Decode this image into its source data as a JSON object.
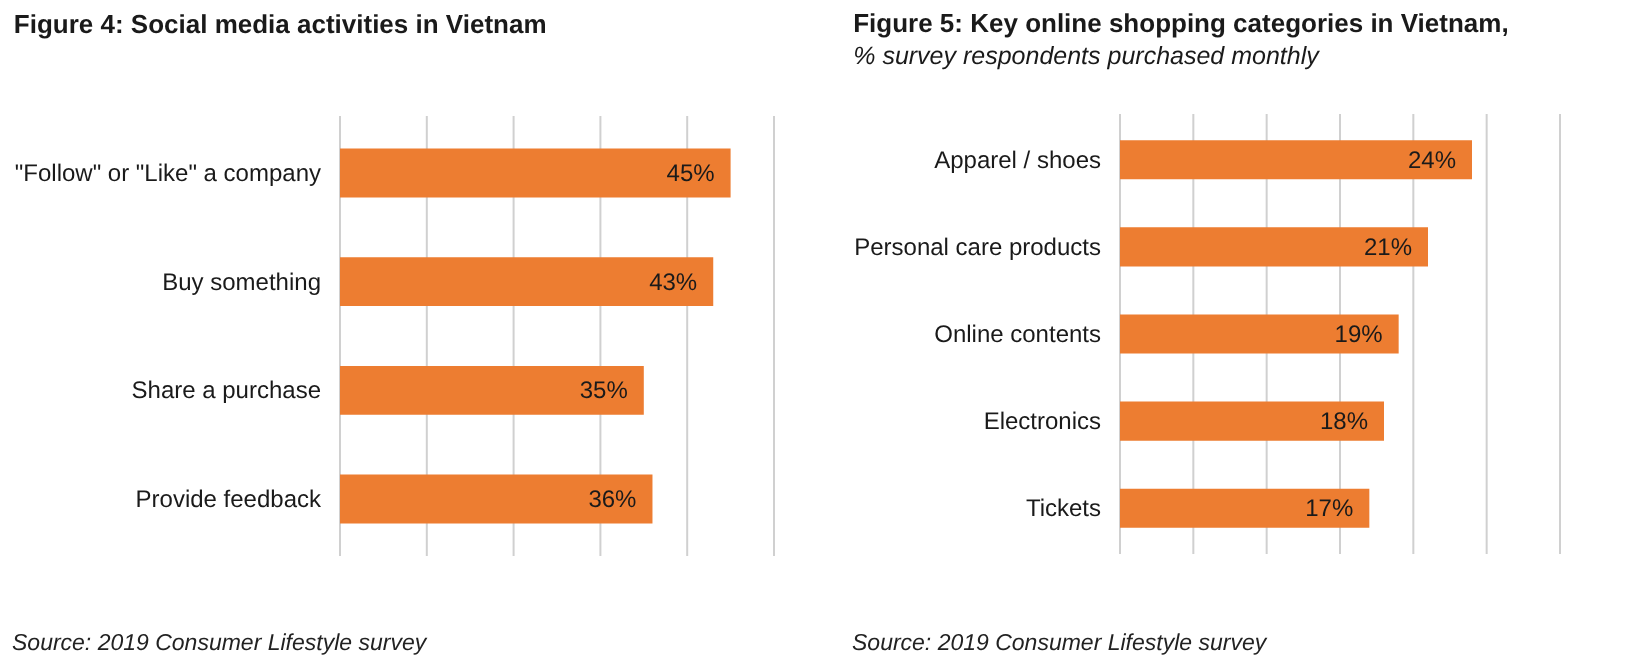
{
  "chart_data": [
    {
      "type": "bar",
      "orientation": "horizontal",
      "title": "Figure 4: Social media activities in Vietnam",
      "categories": [
        "\"Follow\" or \"Like\" a company",
        "Buy something",
        "Share a purchase",
        "Provide feedback"
      ],
      "values": [
        45,
        43,
        35,
        36
      ],
      "value_labels": [
        "45%",
        "43%",
        "35%",
        "36%"
      ],
      "color": "#ed7d31",
      "xlim": [
        0,
        50
      ],
      "xticks": [
        {
          "value": 0,
          "label": null
        },
        {
          "value": 10,
          "label": null
        },
        {
          "value": 20,
          "label": null
        },
        {
          "value": 30,
          "label": null
        },
        {
          "value": 40,
          "label": null
        },
        {
          "value": 50,
          "label": null
        }
      ],
      "grid": "x",
      "tick_labels": "y",
      "annotations": [
        "Source: 2019 Consumer Lifestyle survey"
      ]
    },
    {
      "type": "bar",
      "orientation": "horizontal",
      "title": "Figure 5: Key online shopping categories in Vietnam,",
      "subtitle": "% survey respondents purchased monthly",
      "categories": [
        "Apparel / shoes",
        "Personal care products",
        "Online contents",
        "Electronics",
        "Tickets"
      ],
      "values": [
        24,
        21,
        19,
        18,
        17
      ],
      "value_labels": [
        "24%",
        "21%",
        "19%",
        "18%",
        "17%"
      ],
      "color": "#ed7d31",
      "xlim": [
        0,
        30
      ],
      "xticks": [
        {
          "value": 0,
          "label": null
        },
        {
          "value": 5,
          "label": null
        },
        {
          "value": 10,
          "label": null
        },
        {
          "value": 15,
          "label": null
        },
        {
          "value": 20,
          "label": null
        },
        {
          "value": 25,
          "label": null
        },
        {
          "value": 30,
          "label": null
        }
      ],
      "grid": "x",
      "tick_labels": "y",
      "annotations": [
        "Source: 2019 Consumer Lifestyle survey"
      ]
    }
  ]
}
